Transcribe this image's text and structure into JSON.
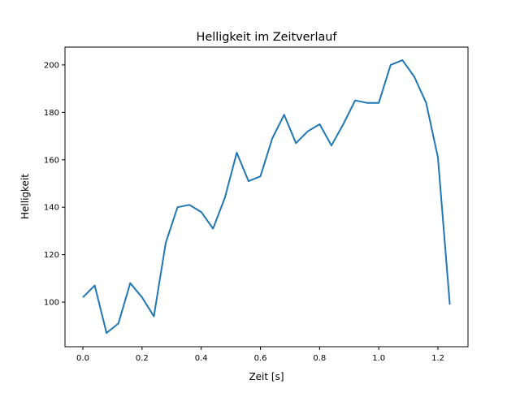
{
  "chart_data": {
    "type": "line",
    "title": "Helligkeit im Zeitverlauf",
    "xlabel": "Zeit [s]",
    "ylabel": "Helligkeit",
    "xlim": [
      -0.0604,
      1.3015
    ],
    "ylim": [
      81.2,
      207.5
    ],
    "xticks": [
      0.0,
      0.2,
      0.4,
      0.6,
      0.8,
      1.0,
      1.2
    ],
    "xtick_labels": [
      "0.0",
      "0.2",
      "0.4",
      "0.6",
      "0.8",
      "1.0",
      "1.2"
    ],
    "yticks": [
      100,
      120,
      140,
      160,
      180,
      200
    ],
    "ytick_labels": [
      "100",
      "120",
      "140",
      "160",
      "180",
      "200"
    ],
    "grid": false,
    "series": [
      {
        "name": "Helligkeit",
        "color": "#1f77b4",
        "x": [
          0.0,
          0.04,
          0.08,
          0.12,
          0.16,
          0.2,
          0.24,
          0.28,
          0.32,
          0.36,
          0.4,
          0.44,
          0.48,
          0.52,
          0.56,
          0.6,
          0.64,
          0.68,
          0.72,
          0.76,
          0.8,
          0.84,
          0.88,
          0.92,
          0.96,
          1.0,
          1.04,
          1.08,
          1.12,
          1.16,
          1.2,
          1.24
        ],
        "y": [
          102,
          107,
          87,
          91,
          108,
          102,
          94,
          125,
          140,
          141,
          138,
          131,
          144,
          163,
          151,
          153,
          169,
          179,
          167,
          172,
          175,
          166,
          175,
          185,
          184,
          184,
          200,
          202,
          195,
          184,
          161,
          99
        ]
      }
    ]
  }
}
